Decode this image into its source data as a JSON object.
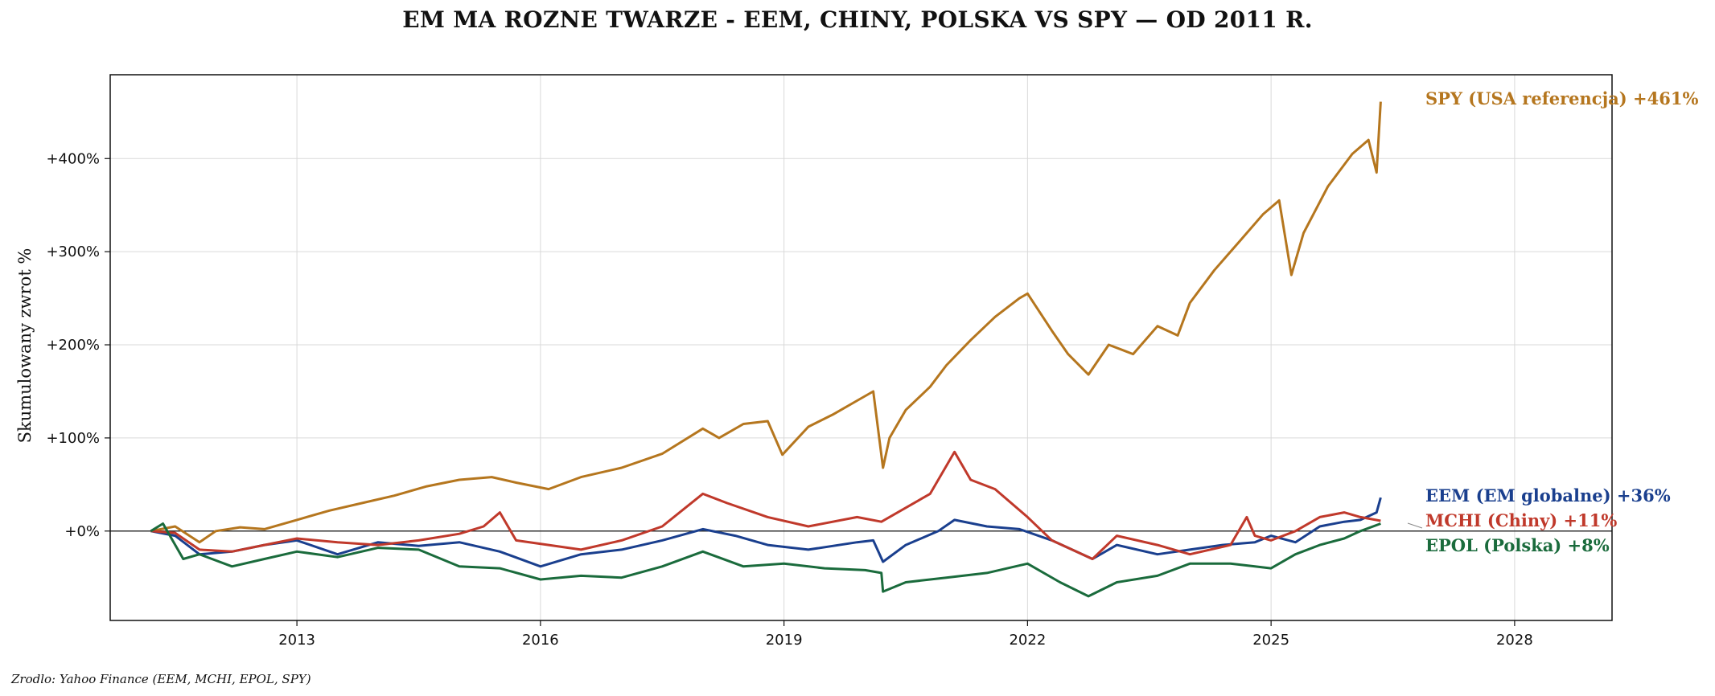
{
  "chart_data": {
    "type": "line",
    "title": "EM MA ROZNE TWARZE - EEM, CHINY, POLSKA VS SPY — OD 2011 R.",
    "xlabel": "",
    "ylabel": "Skumulowany zwrot %",
    "xlim": [
      2010.7,
      2029.2
    ],
    "ylim": [
      -96,
      490
    ],
    "x_ticks": [
      2013,
      2016,
      2019,
      2022,
      2025,
      2028
    ],
    "x_tick_labels": [
      "2013",
      "2016",
      "2019",
      "2022",
      "2025",
      "2028"
    ],
    "y_ticks": [
      0,
      100,
      200,
      300,
      400
    ],
    "y_tick_labels": [
      "+0%",
      "+100%",
      "+200%",
      "+300%",
      "+400%"
    ],
    "grid": true,
    "zero_line": true,
    "source": "Zrodlo: Yahoo Finance (EEM, MCHI, EPOL, SPY)",
    "series": [
      {
        "name": "SPY (USA referencja)",
        "end_label": "SPY (USA referencja)  +461%",
        "color": "#b5761e",
        "x": [
          2011.2,
          2011.5,
          2011.8,
          2012.0,
          2012.3,
          2012.6,
          2013.0,
          2013.4,
          2013.8,
          2014.2,
          2014.6,
          2015.0,
          2015.4,
          2015.7,
          2016.1,
          2016.5,
          2017.0,
          2017.5,
          2018.0,
          2018.2,
          2018.5,
          2018.8,
          2018.98,
          2019.3,
          2019.6,
          2019.9,
          2020.1,
          2020.22,
          2020.3,
          2020.5,
          2020.8,
          2021.0,
          2021.3,
          2021.6,
          2021.9,
          2022.0,
          2022.3,
          2022.5,
          2022.75,
          2023.0,
          2023.3,
          2023.6,
          2023.85,
          2024.0,
          2024.3,
          2024.6,
          2024.9,
          2025.1,
          2025.25,
          2025.4,
          2025.7,
          2026.0,
          2026.2,
          2026.3,
          2026.35
        ],
        "values": [
          0,
          5,
          -12,
          0,
          4,
          2,
          12,
          22,
          30,
          38,
          48,
          55,
          58,
          52,
          45,
          58,
          68,
          83,
          110,
          100,
          115,
          118,
          82,
          112,
          125,
          140,
          150,
          68,
          100,
          130,
          155,
          178,
          205,
          230,
          250,
          255,
          215,
          190,
          168,
          200,
          190,
          220,
          210,
          245,
          280,
          310,
          340,
          355,
          275,
          320,
          370,
          405,
          420,
          385,
          461
        ]
      },
      {
        "name": "EEM (EM globalne)",
        "end_label": "EEM (EM globalne)  +36%",
        "color": "#1a3f8e",
        "x": [
          2011.2,
          2011.5,
          2011.8,
          2012.2,
          2012.6,
          2013.0,
          2013.5,
          2014.0,
          2014.5,
          2015.0,
          2015.5,
          2016.0,
          2016.5,
          2017.0,
          2017.5,
          2018.0,
          2018.4,
          2018.8,
          2019.3,
          2019.9,
          2020.1,
          2020.22,
          2020.5,
          2020.9,
          2021.1,
          2021.5,
          2021.9,
          2022.3,
          2022.8,
          2023.1,
          2023.6,
          2024.0,
          2024.4,
          2024.8,
          2025.0,
          2025.3,
          2025.6,
          2025.9,
          2026.1,
          2026.3,
          2026.35
        ],
        "values": [
          0,
          -5,
          -25,
          -22,
          -15,
          -10,
          -25,
          -12,
          -16,
          -12,
          -22,
          -38,
          -25,
          -20,
          -10,
          2,
          -5,
          -15,
          -20,
          -12,
          -10,
          -33,
          -15,
          0,
          12,
          5,
          2,
          -10,
          -30,
          -15,
          -25,
          -20,
          -15,
          -12,
          -5,
          -12,
          5,
          10,
          12,
          20,
          36
        ]
      },
      {
        "name": "MCHI (Chiny)",
        "end_label": "MCHI (Chiny)  +11%",
        "color": "#c0392b",
        "x": [
          2011.2,
          2011.5,
          2011.8,
          2012.2,
          2012.6,
          2013.0,
          2013.5,
          2014.0,
          2014.5,
          2015.0,
          2015.3,
          2015.5,
          2015.7,
          2016.1,
          2016.5,
          2017.0,
          2017.5,
          2018.0,
          2018.3,
          2018.8,
          2019.3,
          2019.9,
          2020.2,
          2020.5,
          2020.8,
          2021.1,
          2021.3,
          2021.6,
          2022.0,
          2022.3,
          2022.8,
          2023.1,
          2023.6,
          2024.0,
          2024.5,
          2024.7,
          2024.8,
          2025.0,
          2025.3,
          2025.6,
          2025.9,
          2026.1,
          2026.35
        ],
        "values": [
          0,
          -2,
          -20,
          -22,
          -15,
          -8,
          -12,
          -15,
          -10,
          -3,
          5,
          20,
          -10,
          -15,
          -20,
          -10,
          5,
          40,
          30,
          15,
          5,
          15,
          10,
          25,
          40,
          85,
          55,
          45,
          15,
          -10,
          -30,
          -5,
          -15,
          -25,
          -15,
          15,
          -5,
          -10,
          0,
          15,
          20,
          15,
          11
        ]
      },
      {
        "name": "EPOL (Polska)",
        "end_label": "EPOL (Polska)  +8%",
        "color": "#1a6b3c",
        "x": [
          2011.2,
          2011.35,
          2011.6,
          2011.8,
          2012.2,
          2012.6,
          2013.0,
          2013.5,
          2014.0,
          2014.5,
          2015.0,
          2015.5,
          2016.0,
          2016.5,
          2017.0,
          2017.5,
          2018.0,
          2018.5,
          2019.0,
          2019.5,
          2020.0,
          2020.2,
          2020.22,
          2020.5,
          2021.0,
          2021.5,
          2022.0,
          2022.4,
          2022.75,
          2023.1,
          2023.6,
          2024.0,
          2024.5,
          2024.8,
          2025.0,
          2025.3,
          2025.6,
          2025.9,
          2026.1,
          2026.35
        ],
        "values": [
          0,
          8,
          -30,
          -25,
          -38,
          -30,
          -22,
          -28,
          -18,
          -20,
          -38,
          -40,
          -52,
          -48,
          -50,
          -38,
          -22,
          -38,
          -35,
          -40,
          -42,
          -45,
          -65,
          -55,
          -50,
          -45,
          -35,
          -55,
          -70,
          -55,
          -48,
          -35,
          -35,
          -38,
          -40,
          -25,
          -15,
          -8,
          0,
          8
        ]
      }
    ]
  }
}
